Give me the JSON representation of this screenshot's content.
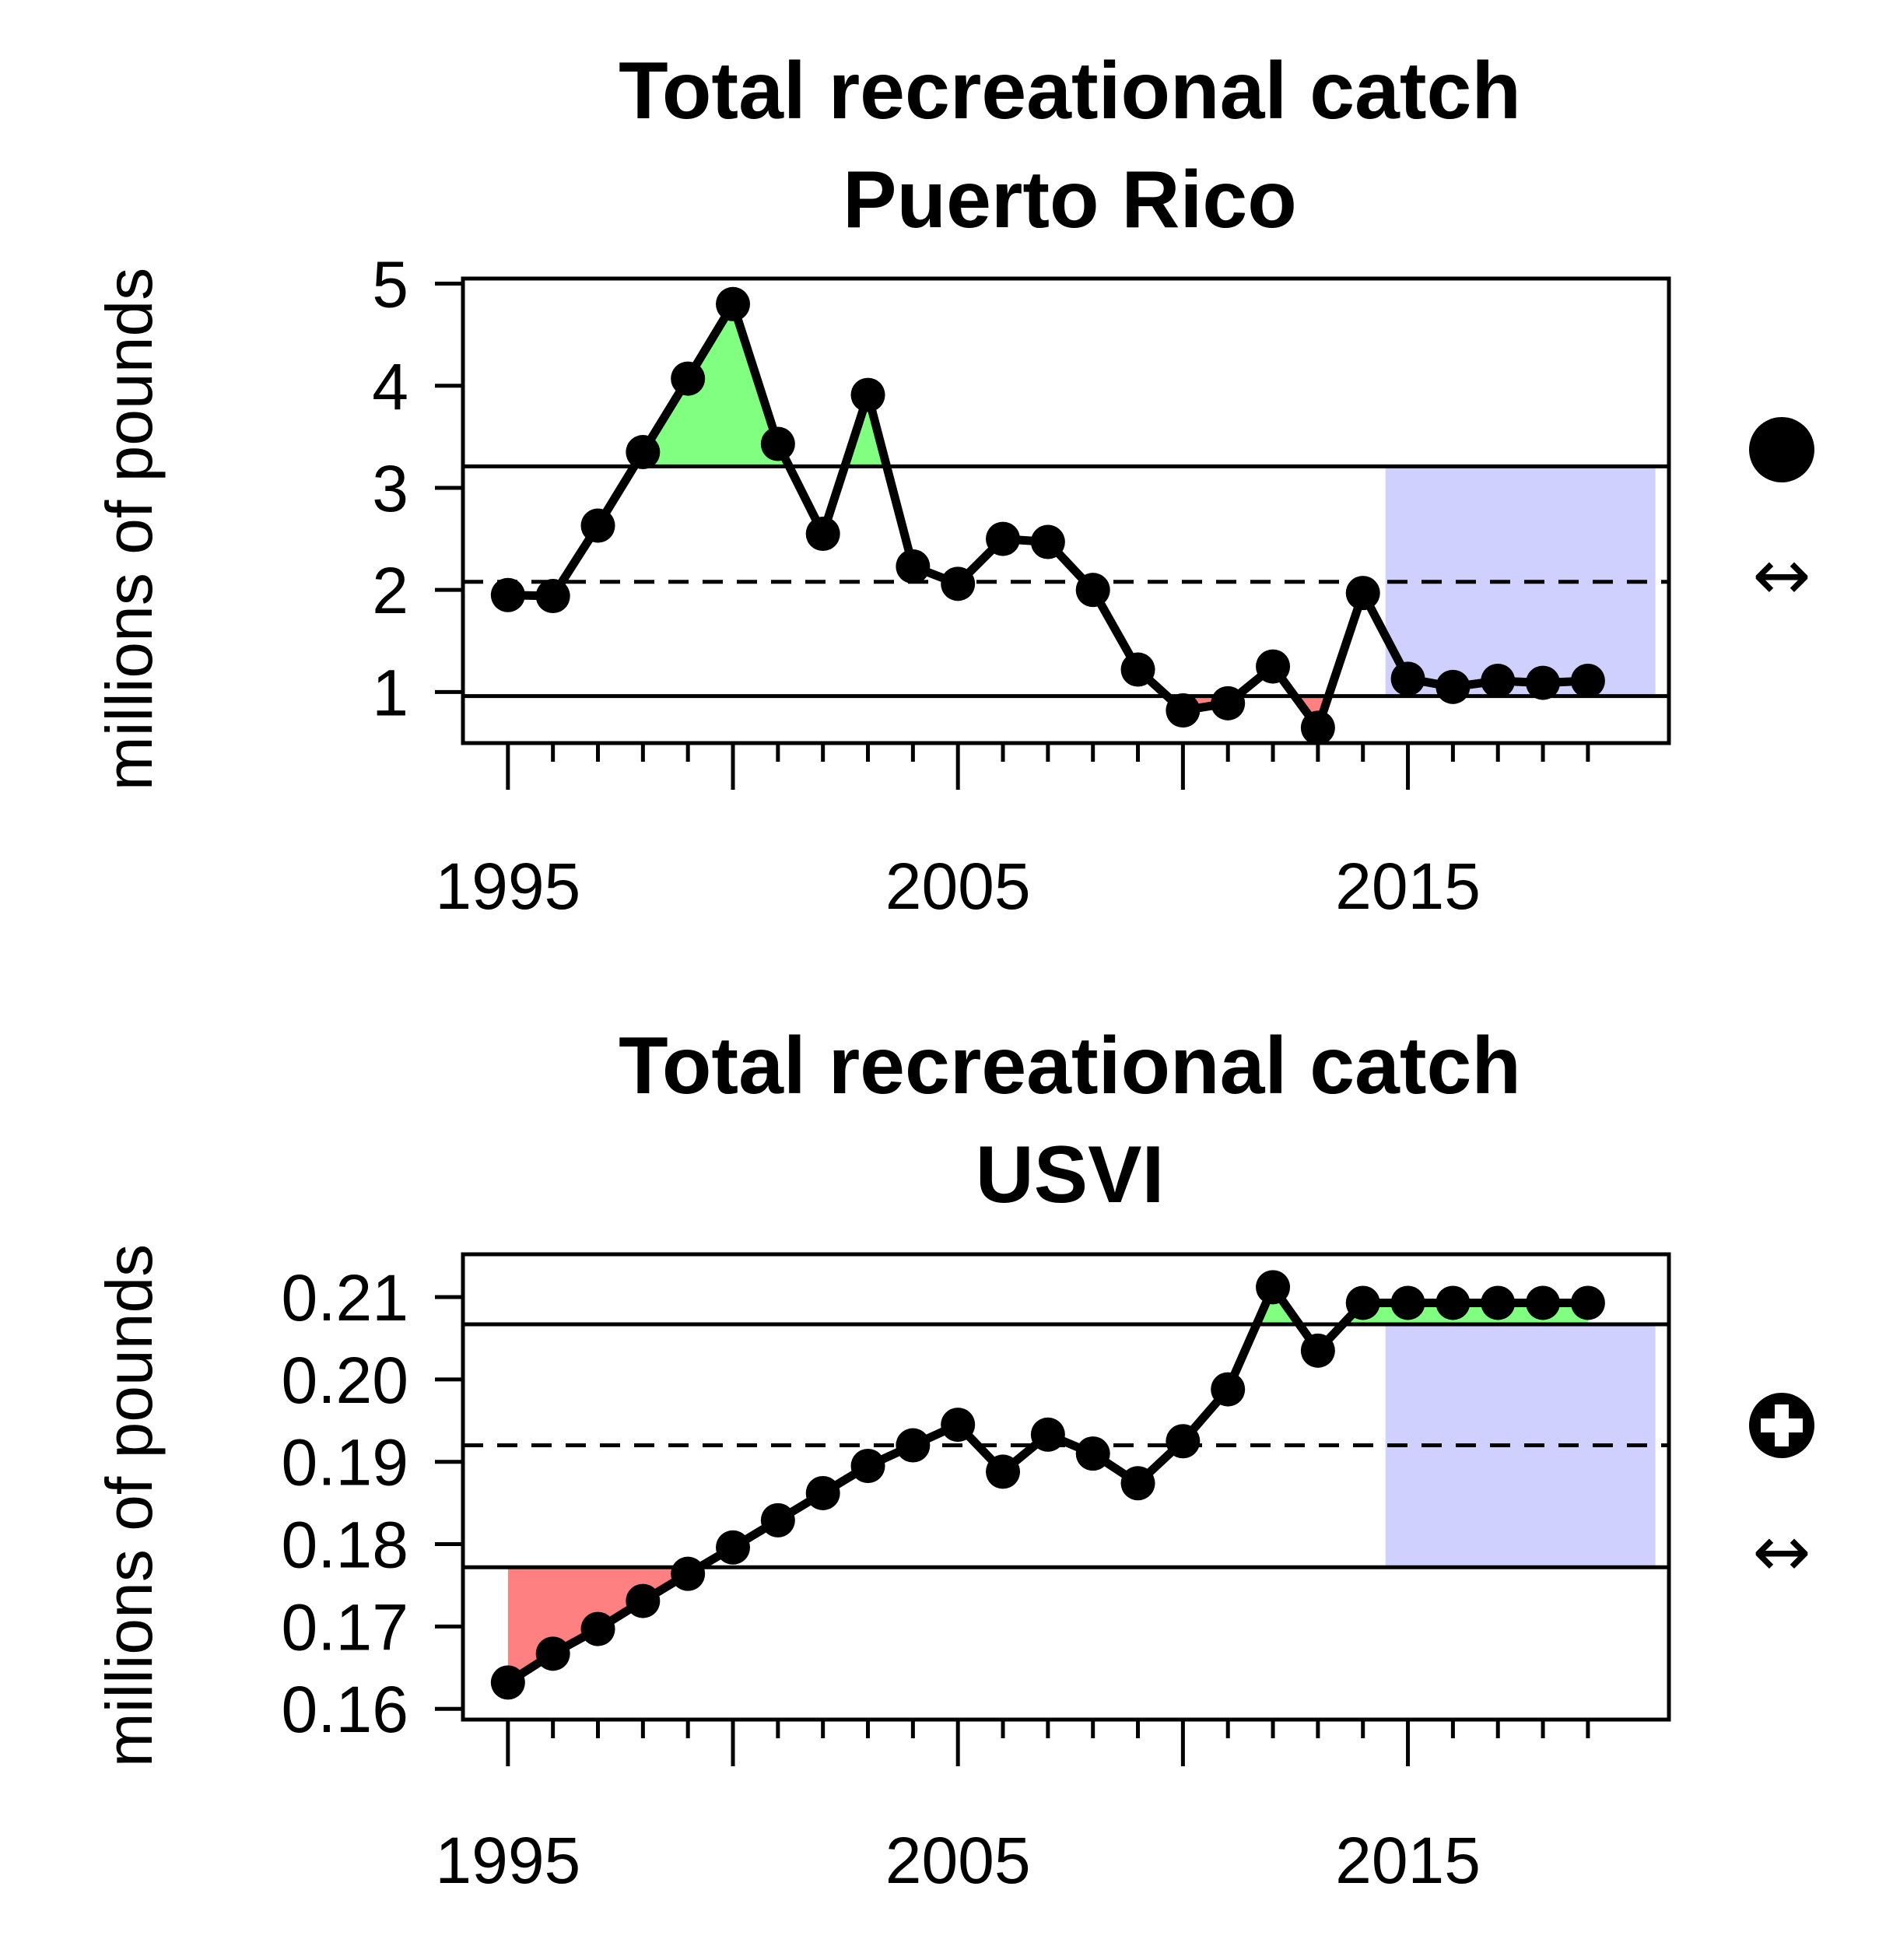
{
  "chart_data": [
    {
      "type": "line",
      "title": "Total recreational catch",
      "subtitle": "Puerto Rico",
      "xlabel": "",
      "ylabel": "millions of pounds",
      "xlim": [
        1994,
        2020.8
      ],
      "ylim": [
        0.5,
        5.05
      ],
      "x_ticks": [
        1995,
        2000,
        2005,
        2010,
        2015,
        2020
      ],
      "x_tick_labels": [
        "1995",
        "2005",
        "2015"
      ],
      "y_ticks": [
        1,
        2,
        3,
        4,
        5
      ],
      "y_tick_labels": [
        "1",
        "2",
        "3",
        "4",
        "5"
      ],
      "x": [
        1995,
        1996,
        1997,
        1998,
        1999,
        2000,
        2001,
        2002,
        2003,
        2004,
        2005,
        2006,
        2007,
        2008,
        2009,
        2010,
        2011,
        2012,
        2013,
        2014,
        2015,
        2016,
        2017,
        2018,
        2019
      ],
      "values": [
        1.95,
        1.94,
        2.63,
        3.35,
        4.07,
        4.8,
        3.43,
        2.55,
        3.91,
        2.23,
        2.06,
        2.5,
        2.47,
        2.0,
        1.22,
        0.82,
        0.89,
        1.25,
        0.65,
        1.97,
        1.13,
        1.05,
        1.11,
        1.09,
        1.11
      ],
      "mean": 2.08,
      "upper_sd": 3.21,
      "lower_sd": 0.96,
      "recent_window": [
        2014.5,
        2020.5
      ],
      "status_symbol": "filled-circle-icon",
      "trend_symbol": "↔",
      "colors": {
        "above": "#80ff80",
        "below": "#ff8080",
        "recent": "#d0d0ff",
        "line": "#000000"
      }
    },
    {
      "type": "line",
      "title": "Total recreational catch",
      "subtitle": "USVI",
      "xlabel": "",
      "ylabel": "millions of pounds",
      "xlim": [
        1994,
        2020.8
      ],
      "ylim": [
        0.1587,
        0.2152
      ],
      "x_ticks": [
        1995,
        2000,
        2005,
        2010,
        2015,
        2020
      ],
      "x_tick_labels": [
        "1995",
        "2005",
        "2015"
      ],
      "y_ticks": [
        0.16,
        0.17,
        0.18,
        0.19,
        0.2,
        0.21
      ],
      "y_tick_labels": [
        "0.16",
        "0.17",
        "0.18",
        "0.19",
        "0.20",
        "0.21"
      ],
      "x": [
        1995,
        1996,
        1997,
        1998,
        1999,
        2000,
        2001,
        2002,
        2003,
        2004,
        2005,
        2006,
        2007,
        2008,
        2009,
        2010,
        2011,
        2012,
        2013,
        2014,
        2015,
        2016,
        2017,
        2018,
        2019
      ],
      "values": [
        0.1632,
        0.1667,
        0.1697,
        0.1731,
        0.1764,
        0.1796,
        0.1829,
        0.1862,
        0.1895,
        0.192,
        0.1945,
        0.1888,
        0.1933,
        0.191,
        0.1874,
        0.1925,
        0.1988,
        0.2112,
        0.2035,
        0.2093,
        0.2093,
        0.2093,
        0.2093,
        0.2093,
        0.2093
      ],
      "mean": 0.192,
      "upper_sd": 0.2067,
      "lower_sd": 0.1772,
      "recent_window": [
        2014.5,
        2020.5
      ],
      "status_symbol": "circle-plus-icon",
      "trend_symbol": "↔",
      "colors": {
        "above": "#80ff80",
        "below": "#ff8080",
        "recent": "#d0d0ff",
        "line": "#000000"
      }
    }
  ]
}
